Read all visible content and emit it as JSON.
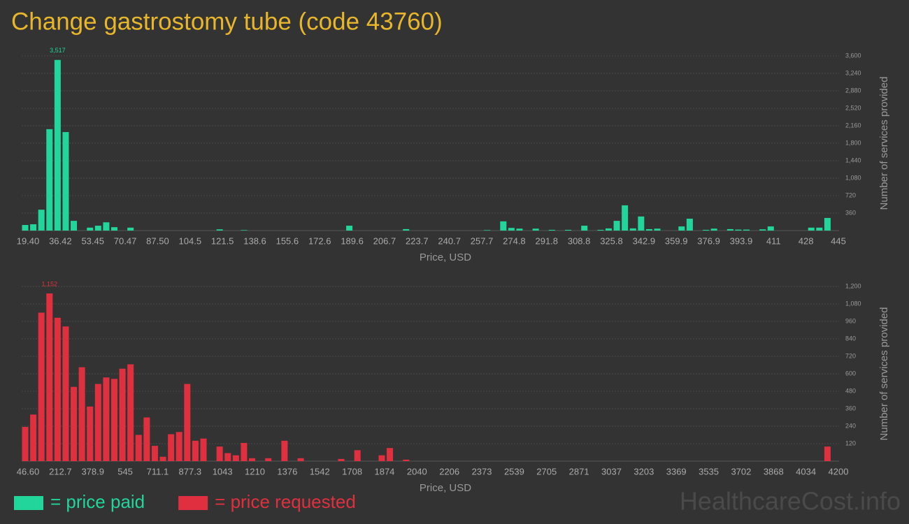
{
  "title": "Change gastrostomy tube (code 43760)",
  "watermark": "HealthcareCost.info",
  "chart_data": [
    {
      "type": "bar",
      "x_label": "Price, USD",
      "y_label": "Number of services provided",
      "grid": true,
      "categories": [
        "19.40",
        null,
        null,
        null,
        "36.42",
        null,
        null,
        null,
        "53.45",
        null,
        null,
        null,
        "70.47",
        null,
        null,
        null,
        "87.50",
        null,
        null,
        null,
        "104.5",
        null,
        null,
        null,
        "121.5",
        null,
        null,
        null,
        "138.6",
        null,
        null,
        null,
        "155.6",
        null,
        null,
        null,
        "172.6",
        null,
        null,
        null,
        "189.6",
        null,
        null,
        null,
        "206.7",
        null,
        null,
        null,
        "223.7",
        null,
        null,
        null,
        "240.7",
        null,
        null,
        null,
        "257.7",
        null,
        null,
        null,
        "274.8",
        null,
        null,
        null,
        "291.8",
        null,
        null,
        null,
        "308.8",
        null,
        null,
        null,
        "325.8",
        null,
        null,
        null,
        "342.9",
        null,
        null,
        null,
        "359.9",
        null,
        null,
        null,
        "376.9",
        null,
        null,
        null,
        "393.9",
        null,
        null,
        null,
        "411",
        null,
        null,
        null,
        "428",
        null,
        null,
        null,
        "445"
      ],
      "series": [
        {
          "name": "= price paid",
          "color": "#22d59b",
          "values": [
            115,
            130,
            430,
            2090,
            3517,
            2030,
            200,
            0,
            60,
            100,
            170,
            70,
            0,
            60,
            0,
            0,
            0,
            0,
            0,
            0,
            0,
            0,
            0,
            0,
            25,
            0,
            0,
            10,
            0,
            0,
            0,
            0,
            0,
            0,
            0,
            0,
            0,
            0,
            0,
            0,
            100,
            0,
            0,
            0,
            0,
            0,
            0,
            30,
            0,
            0,
            0,
            0,
            0,
            0,
            0,
            0,
            0,
            10,
            0,
            190,
            55,
            40,
            0,
            40,
            0,
            15,
            0,
            15,
            0,
            100,
            0,
            15,
            45,
            200,
            520,
            45,
            290,
            30,
            40,
            0,
            0,
            85,
            245,
            0,
            15,
            40,
            0,
            30,
            20,
            20,
            0,
            25,
            85,
            0,
            0,
            0,
            0,
            60,
            60,
            260,
            0
          ],
          "value_labels": [
            null,
            null,
            null,
            null,
            "3,517",
            null,
            null,
            null,
            null,
            null,
            null,
            null,
            null,
            null,
            null,
            null,
            null,
            null,
            null,
            null,
            null,
            null,
            null,
            null,
            null,
            null,
            null,
            null,
            null,
            null,
            null,
            null,
            null,
            null,
            null,
            null,
            null,
            null,
            null,
            null,
            null,
            null,
            null,
            null,
            null,
            null,
            null,
            null,
            null,
            null,
            null,
            null,
            null,
            null,
            null,
            null,
            null,
            null,
            null,
            null,
            null,
            null,
            null,
            null,
            null,
            null,
            null,
            null,
            null,
            null,
            null,
            null,
            null,
            null,
            null,
            null,
            null,
            null,
            null,
            null,
            null,
            null,
            null,
            null,
            null,
            null,
            null,
            null,
            null,
            null,
            null,
            null,
            null,
            null,
            null,
            null,
            null,
            null,
            null,
            null,
            null
          ]
        }
      ],
      "ylim": [
        0,
        3600
      ],
      "yticks": [
        360,
        720,
        {
          "value": 1080,
          "label": "1,080"
        },
        {
          "value": 1440,
          "label": "1,440"
        },
        {
          "value": 1800,
          "label": "1,800"
        },
        {
          "value": 2160,
          "label": "2,160"
        },
        {
          "value": 2520,
          "label": "2,520"
        },
        {
          "value": 2880,
          "label": "2,880"
        },
        {
          "value": 3240,
          "label": "3,240"
        },
        {
          "value": 3600,
          "label": "3,600"
        }
      ]
    },
    {
      "type": "bar",
      "x_label": "Price, USD",
      "y_label": "Number of services provided",
      "grid": true,
      "categories": [
        "46.60",
        null,
        null,
        null,
        "212.7",
        null,
        null,
        null,
        "378.9",
        null,
        null,
        null,
        "545",
        null,
        null,
        null,
        "711.1",
        null,
        null,
        null,
        "877.3",
        null,
        null,
        null,
        "1043",
        null,
        null,
        null,
        "1210",
        null,
        null,
        null,
        "1376",
        null,
        null,
        null,
        "1542",
        null,
        null,
        null,
        "1708",
        null,
        null,
        null,
        "1874",
        null,
        null,
        null,
        "2040",
        null,
        null,
        null,
        "2206",
        null,
        null,
        null,
        "2373",
        null,
        null,
        null,
        "2539",
        null,
        null,
        null,
        "2705",
        null,
        null,
        null,
        "2871",
        null,
        null,
        null,
        "3037",
        null,
        null,
        null,
        "3203",
        null,
        null,
        null,
        "3369",
        null,
        null,
        null,
        "3535",
        null,
        null,
        null,
        "3702",
        null,
        null,
        null,
        "3868",
        null,
        null,
        null,
        "4034",
        null,
        null,
        null,
        "4200"
      ],
      "series": [
        {
          "name": "= price requested",
          "color": "#e0303f",
          "values": [
            235,
            320,
            1020,
            1152,
            985,
            925,
            510,
            645,
            375,
            530,
            575,
            565,
            635,
            665,
            180,
            300,
            105,
            30,
            185,
            200,
            530,
            140,
            155,
            0,
            100,
            55,
            40,
            125,
            20,
            0,
            20,
            0,
            140,
            0,
            20,
            0,
            0,
            0,
            0,
            15,
            0,
            75,
            0,
            0,
            40,
            90,
            0,
            10,
            0,
            0,
            0,
            0,
            0,
            0,
            0,
            0,
            0,
            0,
            0,
            0,
            0,
            0,
            0,
            0,
            0,
            0,
            0,
            0,
            0,
            0,
            0,
            0,
            0,
            0,
            0,
            0,
            0,
            0,
            0,
            0,
            0,
            0,
            0,
            0,
            0,
            0,
            0,
            0,
            0,
            0,
            0,
            0,
            0,
            0,
            0,
            0,
            0,
            0,
            0,
            100,
            0
          ],
          "value_labels": [
            null,
            null,
            null,
            "1,152",
            null,
            null,
            null,
            null,
            null,
            null,
            null,
            null,
            null,
            null,
            null,
            null,
            null,
            null,
            null,
            null,
            null,
            null,
            null,
            null,
            null,
            null,
            null,
            null,
            null,
            null,
            null,
            null,
            null,
            null,
            null,
            null,
            null,
            null,
            null,
            null,
            null,
            null,
            null,
            null,
            null,
            null,
            null,
            null,
            null,
            null,
            null,
            null,
            null,
            null,
            null,
            null,
            null,
            null,
            null,
            null,
            null,
            null,
            null,
            null,
            null,
            null,
            null,
            null,
            null,
            null,
            null,
            null,
            null,
            null,
            null,
            null,
            null,
            null,
            null,
            null,
            null,
            null,
            null,
            null,
            null,
            null,
            null,
            null,
            null,
            null,
            null,
            null,
            null,
            null,
            null,
            null,
            null,
            null,
            null,
            null,
            null
          ]
        }
      ],
      "ylim": [
        0,
        1200
      ],
      "yticks": [
        120,
        240,
        360,
        480,
        600,
        720,
        840,
        960,
        {
          "value": 1080,
          "label": "1,080"
        },
        {
          "value": 1200,
          "label": "1,200"
        }
      ]
    }
  ]
}
